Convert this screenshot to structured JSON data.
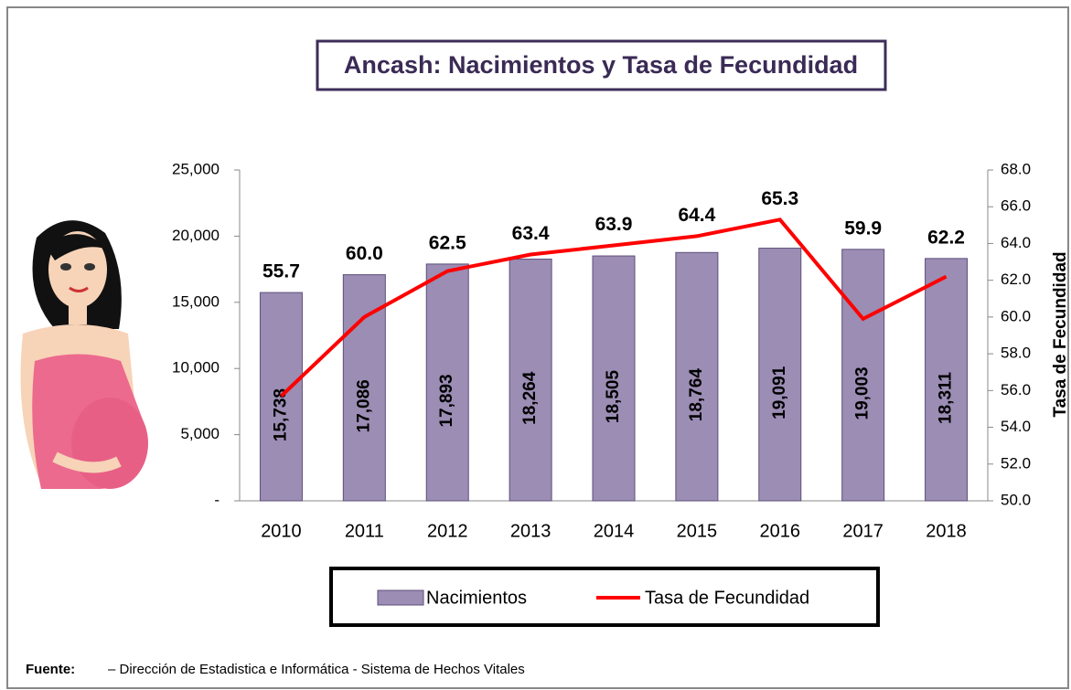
{
  "chart_data": {
    "type": "bar-line",
    "title": "Ancash: Nacimientos y Tasa  de Fecundidad",
    "categories": [
      "2010",
      "2011",
      "2012",
      "2013",
      "2014",
      "2015",
      "2016",
      "2017",
      "2018"
    ],
    "series": [
      {
        "name": "Nacimientos",
        "type": "bar",
        "color": "#9b8db4",
        "values": [
          15738,
          17086,
          17893,
          18264,
          18505,
          18764,
          19091,
          19003,
          18311
        ],
        "value_labels": [
          "15,738",
          "17,086",
          "17,893",
          "18,264",
          "18,505",
          "18,764",
          "19,091",
          "19,003",
          "18,311"
        ]
      },
      {
        "name": "Tasa de Fecundidad",
        "type": "line",
        "axis": "y2",
        "color": "#ff0000",
        "values": [
          55.7,
          60,
          62.5,
          63.4,
          63.9,
          64.4,
          65.3,
          59.9,
          62.2
        ],
        "value_labels": [
          "55.7",
          "60.0",
          "62.5",
          "63.4",
          "63.9",
          "64.4",
          "65.3",
          "59.9",
          "62.2"
        ]
      }
    ],
    "ylim": [
      0,
      25000
    ],
    "yticks": [
      {
        "value": 0,
        "label": "-"
      },
      {
        "value": 5000,
        "label": "5,000"
      },
      {
        "value": 10000,
        "label": "10,000"
      },
      {
        "value": 15000,
        "label": "15,000"
      },
      {
        "value": 20000,
        "label": "20,000"
      },
      {
        "value": 25000,
        "label": "25,000"
      }
    ],
    "y2label": "Tasa de Fecundidad",
    "y2lim": [
      50,
      68
    ],
    "y2ticks": [
      {
        "value": 50,
        "label": "50.0"
      },
      {
        "value": 52,
        "label": "52.0"
      },
      {
        "value": 54,
        "label": "54.0"
      },
      {
        "value": 56,
        "label": "56.0"
      },
      {
        "value": 58,
        "label": "58.0"
      },
      {
        "value": 60,
        "label": "60.0"
      },
      {
        "value": 62,
        "label": "62.0"
      },
      {
        "value": 64,
        "label": "64.0"
      },
      {
        "value": 66,
        "label": "66.0"
      },
      {
        "value": 68,
        "label": "68.0"
      }
    ],
    "source_label": "Fuente:",
    "source": "– Dirección de Estadistica e Informática - Sistema de Hechos Vitales"
  }
}
